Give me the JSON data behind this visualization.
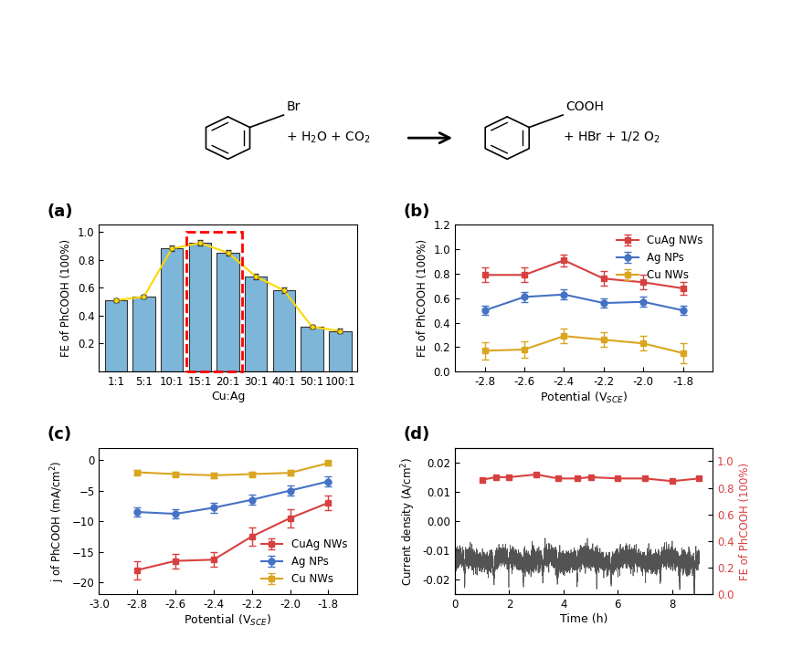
{
  "panel_a": {
    "categories": [
      "1:1",
      "5:1",
      "10:1",
      "15:1",
      "20:1",
      "30:1",
      "40:1",
      "50:1",
      "100:1"
    ],
    "values": [
      0.51,
      0.535,
      0.88,
      0.92,
      0.85,
      0.68,
      0.58,
      0.32,
      0.29
    ],
    "error": [
      0.015,
      0.015,
      0.02,
      0.02,
      0.02,
      0.02,
      0.02,
      0.015,
      0.015
    ],
    "bar_color": "#7EB6D9",
    "line_color": "#FFD700",
    "highlight_indices": [
      3,
      4
    ],
    "xlabel": "Cu:Ag",
    "ylabel": "FE of PhCOOH (100%)",
    "yticks": [
      0.2,
      0.4,
      0.6,
      0.8,
      1.0
    ]
  },
  "panel_b": {
    "potentials": [
      -2.8,
      -2.6,
      -2.4,
      -2.2,
      -2.0,
      -1.8
    ],
    "CuAg_NWs": [
      0.79,
      0.79,
      0.91,
      0.76,
      0.73,
      0.68
    ],
    "CuAg_NWs_err": [
      0.06,
      0.06,
      0.05,
      0.06,
      0.06,
      0.05
    ],
    "Ag_NPs": [
      0.5,
      0.61,
      0.63,
      0.56,
      0.57,
      0.5
    ],
    "Ag_NPs_err": [
      0.04,
      0.04,
      0.04,
      0.04,
      0.04,
      0.04
    ],
    "Cu_NWs": [
      0.17,
      0.18,
      0.29,
      0.26,
      0.23,
      0.15
    ],
    "Cu_NWs_err": [
      0.07,
      0.07,
      0.06,
      0.06,
      0.06,
      0.08
    ],
    "CuAg_color": "#D84040",
    "Ag_color": "#4472C4",
    "Cu_color": "#DAA520",
    "xlabel": "Potential (V$_{SCE}$)",
    "ylabel": "FE of PhCOOH (100%)",
    "ylim": [
      0.0,
      1.2
    ],
    "yticks": [
      0.0,
      0.2,
      0.4,
      0.6,
      0.8,
      1.0,
      1.2
    ]
  },
  "panel_c": {
    "potentials": [
      -2.8,
      -2.6,
      -2.4,
      -2.2,
      -2.0,
      -1.8
    ],
    "CuAg_NWs": [
      -18.0,
      -16.5,
      -16.3,
      -12.5,
      -9.5,
      -7.0
    ],
    "CuAg_NWs_err": [
      1.5,
      1.2,
      1.2,
      1.5,
      1.5,
      1.2
    ],
    "Ag_NPs": [
      -8.5,
      -8.8,
      -7.8,
      -6.5,
      -5.0,
      -3.5
    ],
    "Ag_NPs_err": [
      0.8,
      0.8,
      0.8,
      0.8,
      0.8,
      0.8
    ],
    "Cu_NWs": [
      -2.0,
      -2.3,
      -2.5,
      -2.3,
      -2.1,
      -0.5
    ],
    "Cu_NWs_err": [
      0.4,
      0.4,
      0.4,
      0.4,
      0.4,
      0.4
    ],
    "CuAg_color": "#D84040",
    "Ag_color": "#4472C4",
    "Cu_color": "#DAA520",
    "xlabel": "Potential (V$_{SCE}$)",
    "ylabel": "j of PhCOOH (mA/cm$^2$)",
    "ylim": [
      -22,
      2
    ],
    "yticks": [
      0,
      -5,
      -10,
      -15,
      -20
    ]
  },
  "panel_d": {
    "current_mean": -0.013,
    "FE_points_x": [
      1.0,
      1.5,
      2.0,
      3.0,
      3.8,
      4.5,
      5.0,
      6.0,
      7.0,
      8.0,
      9.0
    ],
    "FE_points_y": [
      0.86,
      0.88,
      0.88,
      0.9,
      0.87,
      0.87,
      0.88,
      0.87,
      0.87,
      0.85,
      0.87
    ],
    "FE_color": "#D84040",
    "current_color": "#404040",
    "xlabel": "Time (h)",
    "ylabel_left": "Current density (A/cm$^2$)",
    "ylabel_right": "FE of PhCOOH (100%)",
    "xlim": [
      0,
      9.5
    ],
    "yticks_left": [
      -0.02,
      -0.01,
      0.0,
      0.01,
      0.02
    ],
    "yticks_right": [
      0.0,
      0.2,
      0.4,
      0.6,
      0.8,
      1.0
    ]
  },
  "background_color": "#FFFFFF"
}
